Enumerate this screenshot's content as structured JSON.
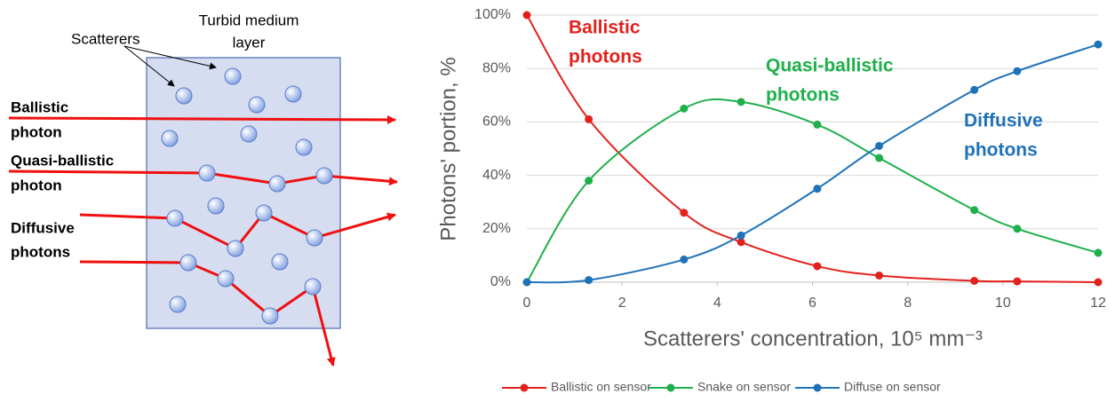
{
  "diagram": {
    "scatterers_label": "Scatterers",
    "medium_label": [
      "Turbid medium",
      "layer"
    ],
    "photons": [
      [
        "Ballistic",
        "photon"
      ],
      [
        "Quasi-ballistic",
        "photon"
      ],
      [
        "Diffusive",
        "photons"
      ]
    ]
  },
  "chart_data": {
    "type": "line",
    "smooth": true,
    "grid": true,
    "legend": "bottom",
    "xlabel": "Scatterers' concentration, 10⁵ mm⁻³",
    "ylabel": "Photons' portion, %",
    "x": [
      0,
      1.3,
      3.3,
      4.5,
      6.1,
      7.4,
      9.4,
      10.3,
      12
    ],
    "xlim": [
      0,
      12
    ],
    "xticks": [
      0,
      2,
      4,
      6,
      8,
      10,
      12
    ],
    "ylim": [
      0,
      100
    ],
    "yticks": [
      {
        "value": 0,
        "label": "0%"
      },
      {
        "value": 20,
        "label": "20%"
      },
      {
        "value": 40,
        "label": "40%"
      },
      {
        "value": 60,
        "label": "60%"
      },
      {
        "value": 80,
        "label": "80%"
      },
      {
        "value": 100,
        "label": "100%"
      }
    ],
    "series": [
      {
        "name": "Ballistic on sensor",
        "color": "#e3211c",
        "values": [
          100,
          61,
          26,
          15,
          6,
          2.5,
          0.5,
          0.3,
          0
        ]
      },
      {
        "name": "Snake on sensor",
        "color": "#1eb04a",
        "values": [
          0,
          38,
          65,
          67.5,
          59,
          46.5,
          27,
          20,
          11
        ]
      },
      {
        "name": "Diffuse on sensor",
        "color": "#1f72b8",
        "values": [
          0,
          0.8,
          8.5,
          17.5,
          35,
          51,
          72,
          79,
          89
        ]
      }
    ],
    "annotations": [
      {
        "lines": [
          "Ballistic",
          "photons"
        ]
      },
      {
        "lines": [
          "Quasi-ballistic",
          "photons"
        ]
      },
      {
        "lines": [
          "Diffusive",
          "photons"
        ]
      }
    ]
  }
}
